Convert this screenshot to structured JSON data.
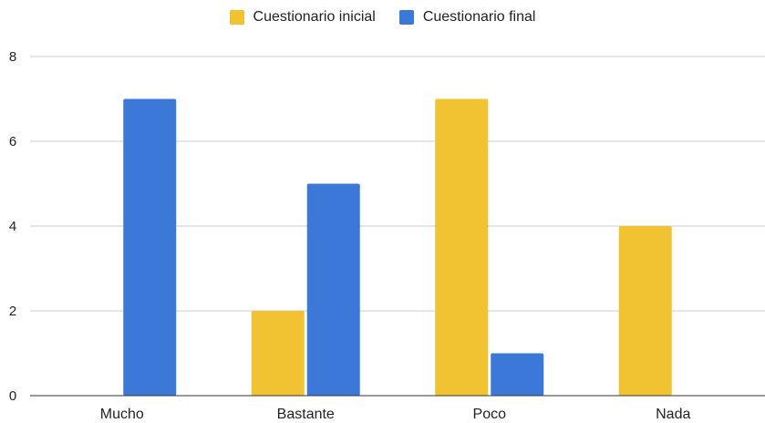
{
  "chart_data": {
    "type": "bar",
    "title": "",
    "xlabel": "",
    "ylabel": "",
    "categories": [
      "Mucho",
      "Bastante",
      "Poco",
      "Nada"
    ],
    "series": [
      {
        "name": "Cuestionario inicial",
        "color": "#F1C232",
        "values": [
          0,
          2,
          7,
          4
        ]
      },
      {
        "name": "Cuestionario final",
        "color": "#3C78D8",
        "values": [
          7,
          5,
          1,
          0
        ]
      }
    ],
    "ylim": [
      0,
      8
    ],
    "yticks": [
      0,
      2,
      4,
      6,
      8
    ],
    "grid": true,
    "legend_position": "top-center"
  }
}
